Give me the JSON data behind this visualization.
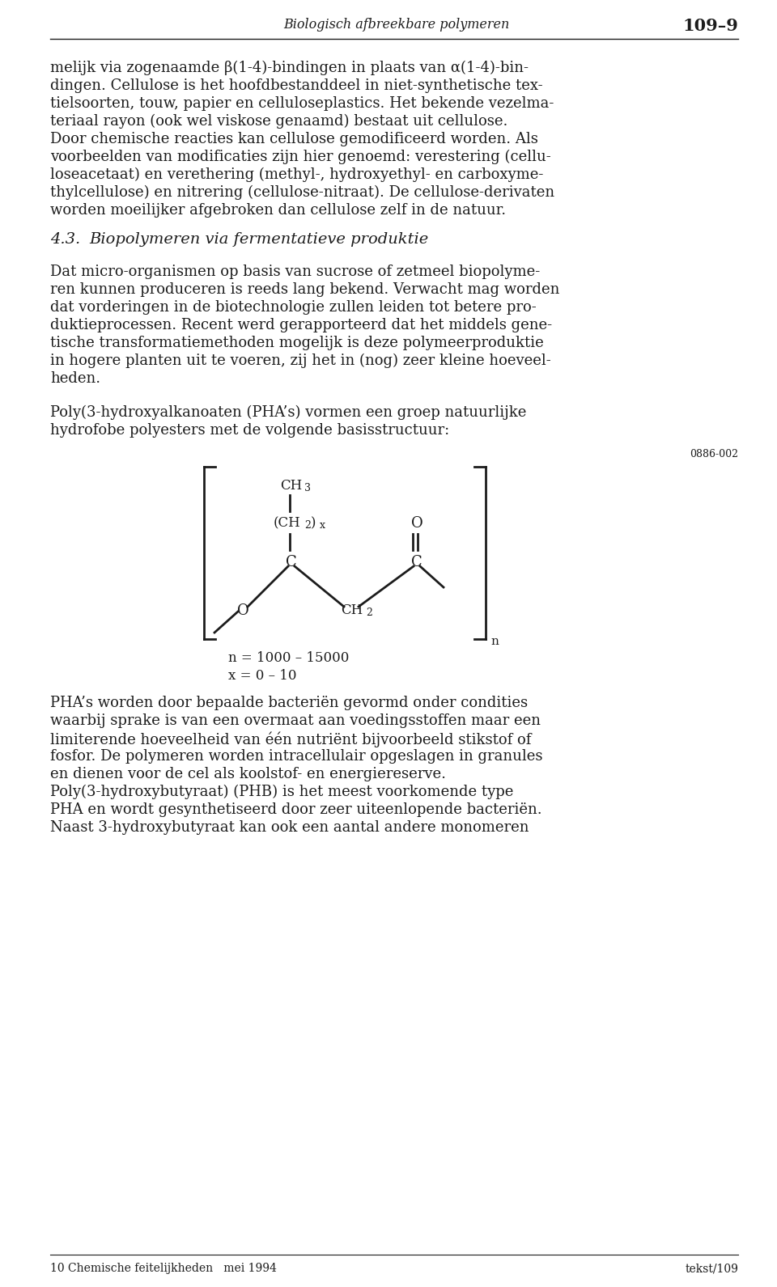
{
  "header_text": "Biologisch afbreekbare polymeren",
  "header_number": "109–9",
  "footer_left": "10 Chemische feitelijkheden   mei 1994",
  "footer_right": "tekst/109",
  "ref_number": "0886-002",
  "bg_color": "#ffffff",
  "text_color": "#1c1c1c",
  "para1_lines": [
    "melijk via zogenaamde β(1-4)-bindingen in plaats van α(1-4)-bin-",
    "dingen. Cellulose is het hoofdbestanddeel in niet-synthetische tex-",
    "tielsoorten, touw, papier en celluloseplastics. Het bekende vezelma-",
    "teriaal rayon (ook wel viskose genaamd) bestaat uit cellulose.",
    "Door chemische reacties kan cellulose gemodificeerd worden. Als",
    "voorbeelden van modificaties zijn hier genoemd: verestering (cellu-",
    "loseacetaat) en verethering (methyl-, hydroxyethyl- en carboxyme-",
    "thylcellulose) en nitrering (cellulose-nitraat). De cellulose-derivaten",
    "worden moeilijker afgebroken dan cellulose zelf in de natuur."
  ],
  "section_num": "4.3.",
  "section_title": "Biopolymeren via fermentatieve produktie",
  "para2_lines": [
    "Dat micro-organismen op basis van sucrose of zetmeel biopolyme-",
    "ren kunnen produceren is reeds lang bekend. Verwacht mag worden",
    "dat vorderingen in de biotechnologie zullen leiden tot betere pro-",
    "duktieprocessen. Recent werd gerapporteerd dat het middels gene-",
    "tische transformatiemethoden mogelijk is deze polymeerproduktie",
    "in hogere planten uit te voeren, zij het in (nog) zeer kleine hoeveel-",
    "heden."
  ],
  "para3_lines": [
    "Poly(3-hydroxyalkanoaten (PHA’s) vormen een groep natuurlijke",
    "hydrofobe polyesters met de volgende basisstructuur:"
  ],
  "formula_line1": "n = 1000 – 15000",
  "formula_line2": "x = 0 – 10",
  "para4_lines": [
    "PHA’s worden door bepaalde bacteriën gevormd onder condities",
    "waarbij sprake is van een overmaat aan voedingsstoffen maar een",
    "limiterende hoeveelheid van één nutriënt bijvoorbeeld stikstof of",
    "fosfor. De polymeren worden intracellulair opgeslagen in granules",
    "en dienen voor de cel als koolstof- en energiereserve.",
    "Poly(3-hydroxybutyraat) (PHB) is het meest voorkomende type",
    "PHA en wordt gesynthetiseerd door zeer uiteenlopende bacteriën.",
    "Naast 3-hydroxybutyraat kan ook een aantal andere monomeren"
  ]
}
